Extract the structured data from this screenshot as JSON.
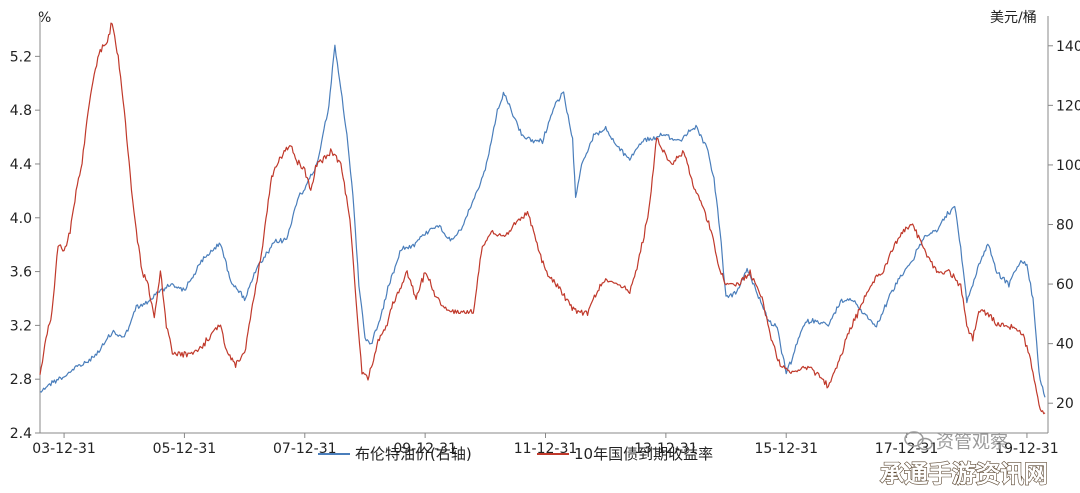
{
  "chart_data": {
    "type": "line",
    "left_axis": {
      "unit": "%",
      "ticks": [
        2.4,
        2.8,
        3.2,
        3.6,
        4.0,
        4.4,
        4.8,
        5.2
      ],
      "range": [
        2.4,
        5.5
      ]
    },
    "right_axis": {
      "unit": "美元/桶",
      "ticks": [
        20,
        40,
        60,
        80,
        100,
        120,
        140
      ],
      "range": [
        10,
        150
      ]
    },
    "x_axis": {
      "ticks": [
        "03-12-31",
        "05-12-31",
        "07-12-31",
        "09-12-31",
        "11-12-31",
        "13-12-31",
        "15-12-31",
        "17-12-31",
        "19-12-31"
      ],
      "range": [
        2003.6,
        2020.35
      ]
    },
    "series": [
      {
        "name": "布伦特油价(右轴)",
        "axis": "right",
        "color": "#4a7ebb",
        "points": [
          [
            2003.6,
            24
          ],
          [
            2003.8,
            27
          ],
          [
            2004.0,
            29
          ],
          [
            2004.2,
            32
          ],
          [
            2004.4,
            34
          ],
          [
            2004.6,
            38
          ],
          [
            2004.8,
            44
          ],
          [
            2005.0,
            42
          ],
          [
            2005.2,
            52
          ],
          [
            2005.4,
            54
          ],
          [
            2005.6,
            58
          ],
          [
            2005.8,
            60
          ],
          [
            2006.0,
            58
          ],
          [
            2006.3,
            68
          ],
          [
            2006.6,
            74
          ],
          [
            2006.75,
            62
          ],
          [
            2007.0,
            55
          ],
          [
            2007.2,
            65
          ],
          [
            2007.5,
            74
          ],
          [
            2007.7,
            75
          ],
          [
            2007.9,
            90
          ],
          [
            2008.0,
            92
          ],
          [
            2008.2,
            100
          ],
          [
            2008.4,
            120
          ],
          [
            2008.5,
            140
          ],
          [
            2008.6,
            125
          ],
          [
            2008.7,
            110
          ],
          [
            2008.8,
            90
          ],
          [
            2008.9,
            60
          ],
          [
            2009.0,
            42
          ],
          [
            2009.1,
            40
          ],
          [
            2009.25,
            48
          ],
          [
            2009.4,
            60
          ],
          [
            2009.6,
            72
          ],
          [
            2009.8,
            73
          ],
          [
            2010.0,
            77
          ],
          [
            2010.2,
            80
          ],
          [
            2010.4,
            75
          ],
          [
            2010.6,
            78
          ],
          [
            2010.8,
            88
          ],
          [
            2011.0,
            98
          ],
          [
            2011.2,
            118
          ],
          [
            2011.3,
            124
          ],
          [
            2011.5,
            115
          ],
          [
            2011.6,
            110
          ],
          [
            2011.8,
            108
          ],
          [
            2011.95,
            108
          ],
          [
            2012.15,
            120
          ],
          [
            2012.3,
            124
          ],
          [
            2012.45,
            108
          ],
          [
            2012.5,
            90
          ],
          [
            2012.6,
            100
          ],
          [
            2012.8,
            110
          ],
          [
            2013.0,
            112
          ],
          [
            2013.2,
            106
          ],
          [
            2013.4,
            102
          ],
          [
            2013.6,
            108
          ],
          [
            2013.8,
            109
          ],
          [
            2013.95,
            110
          ],
          [
            2014.2,
            108
          ],
          [
            2014.5,
            113
          ],
          [
            2014.7,
            105
          ],
          [
            2014.8,
            95
          ],
          [
            2014.9,
            78
          ],
          [
            2015.0,
            55
          ],
          [
            2015.2,
            58
          ],
          [
            2015.35,
            65
          ],
          [
            2015.5,
            58
          ],
          [
            2015.7,
            48
          ],
          [
            2015.85,
            45
          ],
          [
            2016.0,
            30
          ],
          [
            2016.1,
            35
          ],
          [
            2016.3,
            47
          ],
          [
            2016.5,
            48
          ],
          [
            2016.7,
            46
          ],
          [
            2016.9,
            54
          ],
          [
            2017.1,
            55
          ],
          [
            2017.3,
            50
          ],
          [
            2017.5,
            46
          ],
          [
            2017.7,
            55
          ],
          [
            2017.9,
            63
          ],
          [
            2018.1,
            68
          ],
          [
            2018.3,
            76
          ],
          [
            2018.5,
            78
          ],
          [
            2018.7,
            84
          ],
          [
            2018.8,
            86
          ],
          [
            2018.9,
            72
          ],
          [
            2019.0,
            54
          ],
          [
            2019.2,
            66
          ],
          [
            2019.35,
            74
          ],
          [
            2019.5,
            64
          ],
          [
            2019.7,
            60
          ],
          [
            2019.9,
            68
          ],
          [
            2020.0,
            66
          ],
          [
            2020.1,
            55
          ],
          [
            2020.2,
            30
          ],
          [
            2020.3,
            22
          ]
        ]
      },
      {
        "name": "10年国债到期收益率",
        "axis": "left",
        "color": "#c0392b",
        "points": [
          [
            2003.6,
            2.85
          ],
          [
            2003.7,
            3.1
          ],
          [
            2003.8,
            3.3
          ],
          [
            2003.9,
            3.8
          ],
          [
            2004.0,
            3.75
          ],
          [
            2004.1,
            3.9
          ],
          [
            2004.2,
            4.2
          ],
          [
            2004.3,
            4.4
          ],
          [
            2004.4,
            4.8
          ],
          [
            2004.5,
            5.05
          ],
          [
            2004.6,
            5.25
          ],
          [
            2004.7,
            5.3
          ],
          [
            2004.8,
            5.45
          ],
          [
            2004.9,
            5.2
          ],
          [
            2005.0,
            4.8
          ],
          [
            2005.1,
            4.3
          ],
          [
            2005.2,
            3.9
          ],
          [
            2005.3,
            3.6
          ],
          [
            2005.4,
            3.5
          ],
          [
            2005.5,
            3.25
          ],
          [
            2005.6,
            3.6
          ],
          [
            2005.7,
            3.2
          ],
          [
            2005.8,
            3.0
          ],
          [
            2006.0,
            2.98
          ],
          [
            2006.2,
            3.0
          ],
          [
            2006.4,
            3.1
          ],
          [
            2006.5,
            3.18
          ],
          [
            2006.6,
            3.2
          ],
          [
            2006.7,
            3.0
          ],
          [
            2006.85,
            2.9
          ],
          [
            2007.0,
            3.0
          ],
          [
            2007.15,
            3.4
          ],
          [
            2007.3,
            3.8
          ],
          [
            2007.45,
            4.3
          ],
          [
            2007.6,
            4.45
          ],
          [
            2007.75,
            4.55
          ],
          [
            2007.9,
            4.4
          ],
          [
            2008.0,
            4.35
          ],
          [
            2008.1,
            4.2
          ],
          [
            2008.2,
            4.4
          ],
          [
            2008.35,
            4.45
          ],
          [
            2008.45,
            4.5
          ],
          [
            2008.6,
            4.4
          ],
          [
            2008.75,
            4.0
          ],
          [
            2008.85,
            3.4
          ],
          [
            2008.95,
            2.85
          ],
          [
            2009.05,
            2.8
          ],
          [
            2009.2,
            3.05
          ],
          [
            2009.35,
            3.2
          ],
          [
            2009.5,
            3.4
          ],
          [
            2009.7,
            3.6
          ],
          [
            2009.85,
            3.4
          ],
          [
            2010.0,
            3.6
          ],
          [
            2010.2,
            3.4
          ],
          [
            2010.4,
            3.3
          ],
          [
            2010.6,
            3.3
          ],
          [
            2010.8,
            3.3
          ],
          [
            2010.95,
            3.8
          ],
          [
            2011.1,
            3.9
          ],
          [
            2011.3,
            3.86
          ],
          [
            2011.5,
            3.95
          ],
          [
            2011.7,
            4.05
          ],
          [
            2011.8,
            3.9
          ],
          [
            2012.0,
            3.6
          ],
          [
            2012.2,
            3.5
          ],
          [
            2012.35,
            3.4
          ],
          [
            2012.5,
            3.3
          ],
          [
            2012.7,
            3.3
          ],
          [
            2012.85,
            3.45
          ],
          [
            2013.0,
            3.55
          ],
          [
            2013.2,
            3.5
          ],
          [
            2013.4,
            3.45
          ],
          [
            2013.5,
            3.6
          ],
          [
            2013.7,
            4.0
          ],
          [
            2013.85,
            4.6
          ],
          [
            2013.95,
            4.5
          ],
          [
            2014.1,
            4.4
          ],
          [
            2014.3,
            4.5
          ],
          [
            2014.45,
            4.25
          ],
          [
            2014.6,
            4.1
          ],
          [
            2014.75,
            3.9
          ],
          [
            2014.9,
            3.6
          ],
          [
            2015.0,
            3.5
          ],
          [
            2015.2,
            3.5
          ],
          [
            2015.4,
            3.6
          ],
          [
            2015.6,
            3.4
          ],
          [
            2015.75,
            3.1
          ],
          [
            2015.9,
            2.9
          ],
          [
            2016.1,
            2.85
          ],
          [
            2016.3,
            2.9
          ],
          [
            2016.5,
            2.85
          ],
          [
            2016.7,
            2.75
          ],
          [
            2016.9,
            2.95
          ],
          [
            2017.0,
            3.1
          ],
          [
            2017.2,
            3.3
          ],
          [
            2017.4,
            3.5
          ],
          [
            2017.6,
            3.6
          ],
          [
            2017.8,
            3.8
          ],
          [
            2017.95,
            3.9
          ],
          [
            2018.1,
            3.95
          ],
          [
            2018.3,
            3.75
          ],
          [
            2018.5,
            3.6
          ],
          [
            2018.7,
            3.6
          ],
          [
            2018.9,
            3.5
          ],
          [
            2019.0,
            3.2
          ],
          [
            2019.1,
            3.1
          ],
          [
            2019.2,
            3.3
          ],
          [
            2019.35,
            3.3
          ],
          [
            2019.5,
            3.2
          ],
          [
            2019.7,
            3.2
          ],
          [
            2019.9,
            3.15
          ],
          [
            2020.0,
            3.05
          ],
          [
            2020.1,
            2.85
          ],
          [
            2020.2,
            2.6
          ],
          [
            2020.3,
            2.55
          ]
        ]
      }
    ],
    "grid": false,
    "legend": "bottom-center"
  },
  "watermark": {
    "source": "资管观察",
    "site": "承通手游资讯网"
  }
}
